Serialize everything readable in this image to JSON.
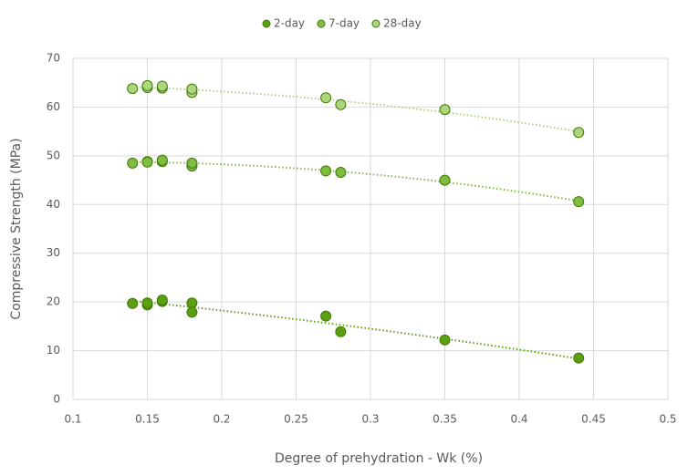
{
  "chart_data": {
    "type": "scatter",
    "x_label": "Degree of prehydration - Wk (%)",
    "y_label": "Compressive Strength (MPa)",
    "x": [
      0.14,
      0.15,
      0.15,
      0.16,
      0.16,
      0.18,
      0.18,
      0.27,
      0.28,
      0.35,
      0.44
    ],
    "series": [
      {
        "name": "2-day",
        "color": "#5e9e12",
        "values": [
          19.7,
          19.4,
          19.8,
          20.1,
          20.4,
          19.8,
          17.9,
          17.1,
          13.9,
          12.2,
          8.5
        ]
      },
      {
        "name": "7-day",
        "color": "#80bb42",
        "values": [
          48.5,
          48.8,
          48.7,
          48.8,
          49.1,
          47.9,
          48.5,
          46.9,
          46.6,
          45.0,
          40.6
        ]
      },
      {
        "name": "28-day",
        "color": "#acd57e",
        "values": [
          63.8,
          64.0,
          64.4,
          63.9,
          64.3,
          63.0,
          63.7,
          61.9,
          60.5,
          59.5,
          54.8
        ]
      }
    ],
    "xlim": [
      0.1,
      0.5
    ],
    "xticks": [
      0.1,
      0.15,
      0.2,
      0.25,
      0.3,
      0.35,
      0.4,
      0.45,
      0.5
    ],
    "ylim": [
      0,
      70
    ],
    "yticks": [
      0,
      10,
      20,
      30,
      40,
      50,
      60,
      70
    ],
    "grid": true,
    "trendline": "polynomial",
    "legend": "top"
  }
}
